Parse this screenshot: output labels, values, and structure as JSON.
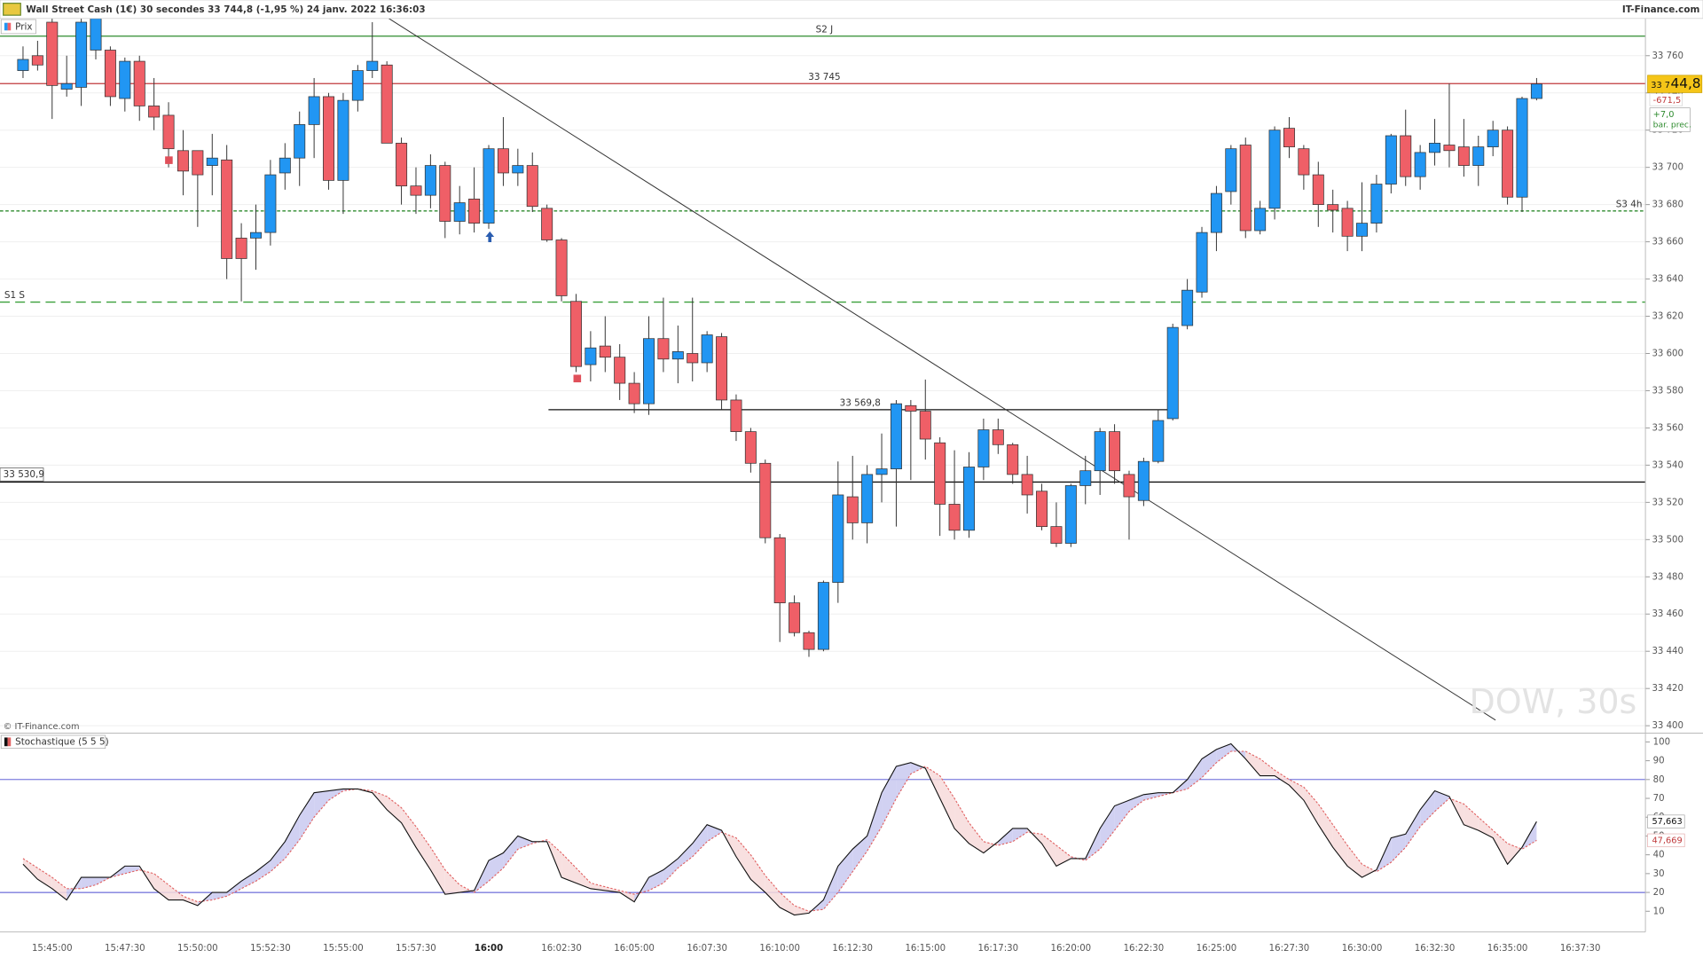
{
  "header": {
    "title": "Wall Street Cash (1€) 30 secondes 33 744,8 (-1,95 %) 24 janv. 2022 16:36:03",
    "source": "IT-Finance.com",
    "copyright": "© IT-Finance.com",
    "watermark": "DOW, 30s"
  },
  "chart_data": [
    {
      "type": "candlestick",
      "legend": "Prix",
      "up_color": "#2196f3",
      "down_color": "#ef5f67",
      "grid": true,
      "categories": [
        null,
        null,
        "15:45:00",
        null,
        null,
        null,
        null,
        "15:47:30",
        null,
        null,
        null,
        null,
        "15:50:00",
        null,
        null,
        null,
        null,
        "15:52:30",
        null,
        null,
        null,
        null,
        "15:55:00",
        null,
        null,
        null,
        null,
        "15:57:30",
        null,
        null,
        null,
        null,
        "16:00",
        null,
        null,
        null,
        null,
        "16:02:30",
        null,
        null,
        null,
        null,
        "16:05:00",
        null,
        null,
        null,
        null,
        "16:07:30",
        null,
        null,
        null,
        null,
        "16:10:00",
        null,
        null,
        null,
        null,
        "16:12:30",
        null,
        null,
        null,
        null,
        "16:15:00",
        null,
        null,
        null,
        null,
        "16:17:30",
        null,
        null,
        null,
        null,
        "16:20:00",
        null,
        null,
        null,
        null,
        "16:22:30",
        null,
        null,
        null,
        null,
        "16:25:00",
        null,
        null,
        null,
        null,
        "16:27:30",
        null,
        null,
        null,
        null,
        "16:30:00",
        null,
        null,
        null,
        null,
        "16:32:30",
        null,
        null,
        null,
        null,
        "16:35:00",
        null,
        null,
        null,
        null,
        "16:37:30"
      ],
      "open": [
        33752,
        33760,
        33778,
        33742,
        33743,
        33763,
        33763,
        33737,
        33757,
        33733,
        33728,
        33709,
        33709,
        33701,
        33704,
        33662,
        33662,
        33665,
        33697,
        33705,
        33723,
        33738,
        33693,
        33736,
        33752,
        33755,
        33713,
        33690,
        33685,
        33701,
        33671,
        33683,
        33670,
        33710,
        33697,
        33701,
        33678,
        33661,
        33628,
        33594,
        33604,
        33598,
        33584,
        33573,
        33608,
        33597,
        33600,
        33595,
        33609,
        33575,
        33558,
        33541,
        33501,
        33466,
        33450,
        33441,
        33477,
        33523,
        33509,
        33535,
        33538,
        33572,
        33569,
        33552,
        33519,
        33505,
        33539,
        33559,
        33551,
        33535,
        33526,
        33507,
        33498,
        33529,
        33537,
        33558,
        33535,
        33521,
        33542,
        33565,
        33615,
        33633,
        33665,
        33687,
        33712,
        33666,
        33678,
        33721,
        33710,
        33696,
        33680,
        33678,
        33663,
        33670,
        33691,
        33717,
        33695,
        33708,
        33712,
        33711,
        33701,
        33711,
        33720,
        33684,
        33737,
        null,
        null,
        null
      ],
      "high": [
        33765,
        33768,
        33780,
        33760,
        33780,
        33780,
        33765,
        33759,
        33760,
        33748,
        33735,
        33720,
        33709,
        33718,
        33712,
        33670,
        33680,
        33704,
        33713,
        33730,
        33748,
        33740,
        33740,
        33755,
        33778,
        33757,
        33716,
        33700,
        33707,
        33703,
        33690,
        33700,
        33712,
        33727,
        33710,
        33708,
        33680,
        33662,
        33632,
        33612,
        33620,
        33605,
        33590,
        33620,
        33630,
        33615,
        33630,
        33612,
        33611,
        33578,
        33560,
        33543,
        33503,
        33470,
        33451,
        33478,
        33542,
        33545,
        33540,
        33557,
        33575,
        33575,
        33586,
        33555,
        33548,
        33547,
        33565,
        33565,
        33552,
        33545,
        33530,
        33520,
        33530,
        33545,
        33560,
        33562,
        33537,
        33544,
        33570,
        33616,
        33640,
        33668,
        33690,
        33712,
        33716,
        33682,
        33722,
        33727,
        33712,
        33703,
        33688,
        33682,
        33692,
        33696,
        33718,
        33731,
        33712,
        33726,
        33745,
        33726,
        33717,
        33725,
        33722,
        33738,
        33748,
        null,
        null,
        null
      ],
      "low": [
        33748,
        33752,
        33726,
        33738,
        33733,
        33758,
        33733,
        33730,
        33725,
        33720,
        33700,
        33685,
        33668,
        33685,
        33640,
        33628,
        33645,
        33658,
        33688,
        33690,
        33705,
        33688,
        33675,
        33730,
        33748,
        33713,
        33680,
        33675,
        33678,
        33662,
        33664,
        33665,
        33667,
        33690,
        33690,
        33676,
        33660,
        33628,
        33590,
        33585,
        33590,
        33575,
        33568,
        33567,
        33590,
        33584,
        33585,
        33590,
        33570,
        33553,
        33536,
        33498,
        33445,
        33448,
        33437,
        33440,
        33466,
        33500,
        33498,
        33520,
        33507,
        33532,
        33543,
        33502,
        33500,
        33501,
        33532,
        33546,
        33530,
        33514,
        33505,
        33496,
        33496,
        33519,
        33524,
        33530,
        33500,
        33518,
        33541,
        33564,
        33613,
        33630,
        33655,
        33680,
        33662,
        33664,
        33672,
        33705,
        33688,
        33668,
        33665,
        33655,
        33655,
        33665,
        33686,
        33690,
        33688,
        33701,
        33700,
        33695,
        33690,
        33706,
        33680,
        33676,
        33736,
        null,
        null,
        null
      ],
      "close": [
        33758,
        33755,
        33744,
        33745,
        33778,
        33780,
        33738,
        33757,
        33733,
        33727,
        33710,
        33698,
        33696,
        33705,
        33651,
        33651,
        33665,
        33696,
        33705,
        33723,
        33738,
        33693,
        33736,
        33752,
        33757,
        33713,
        33690,
        33685,
        33701,
        33671,
        33681,
        33670,
        33710,
        33697,
        33701,
        33679,
        33661,
        33631,
        33593,
        33603,
        33598,
        33584,
        33573,
        33608,
        33597,
        33601,
        33595,
        33610,
        33575,
        33558,
        33541,
        33501,
        33466,
        33450,
        33441,
        33477,
        33524,
        33509,
        33535,
        33538,
        33573,
        33569,
        33554,
        33519,
        33505,
        33539,
        33559,
        33551,
        33535,
        33524,
        33507,
        33498,
        33529,
        33537,
        33558,
        33537,
        33523,
        33542,
        33564,
        33614,
        33634,
        33665,
        33686,
        33710,
        33666,
        33678,
        33720,
        33711,
        33696,
        33680,
        33677,
        33663,
        33670,
        33691,
        33717,
        33695,
        33708,
        33713,
        33709,
        33701,
        33711,
        33720,
        33684,
        33737,
        33744.8,
        null,
        null,
        null
      ],
      "ylim": [
        33396,
        33780
      ],
      "yticks": [
        {
          "value": 33400,
          "label": "33 400"
        },
        {
          "value": 33420,
          "label": "33 420"
        },
        {
          "value": 33440,
          "label": "33 440"
        },
        {
          "value": 33460,
          "label": "33 460"
        },
        {
          "value": 33480,
          "label": "33 480"
        },
        {
          "value": 33500,
          "label": "33 500"
        },
        {
          "value": 33520,
          "label": "33 520"
        },
        {
          "value": 33540,
          "label": "33 540"
        },
        {
          "value": 33560,
          "label": "33 560"
        },
        {
          "value": 33580,
          "label": "33 580"
        },
        {
          "value": 33600,
          "label": "33 600"
        },
        {
          "value": 33620,
          "label": "33 620"
        },
        {
          "value": 33640,
          "label": "33 640"
        },
        {
          "value": 33660,
          "label": "33 660"
        },
        {
          "value": 33680,
          "label": "33 680"
        },
        {
          "value": 33700,
          "label": "33 700"
        },
        {
          "value": 33720,
          "label": "33 720"
        },
        {
          "value": 33740,
          "label": "33 740"
        },
        {
          "value": 33760,
          "label": "33 760"
        }
      ],
      "levels": [
        {
          "value": 33770.5,
          "label": "S2 J",
          "color": "#2e8b2e",
          "style": "solid"
        },
        {
          "value": 33745,
          "label": "33 745",
          "color": "#c0393b",
          "style": "solid"
        },
        {
          "value": 33676.6,
          "label": "S3 4h",
          "color": "#2e8b2e",
          "style": "dotted"
        },
        {
          "value": 33627.6,
          "label": "S1 S",
          "color": "#3aa03a",
          "style": "dashed"
        },
        {
          "value": 33569.8,
          "label": "33 569,8",
          "color": "#111111",
          "style": "solid"
        },
        {
          "value": 33530.9,
          "label": "33 530,9",
          "color": "#111111",
          "style": "solid"
        }
      ],
      "last_price": {
        "value": 33744.8,
        "label_prefix": "33 7",
        "label_suffix": "44,8"
      },
      "change": {
        "value": -671.5,
        "label": "-671,5"
      },
      "bar_change": {
        "value": 7.0,
        "label": "+7,0",
        "caption": "bar. prec."
      }
    },
    {
      "type": "stochastic",
      "title": "Stochastique (5 5 5)",
      "k_color": "#111111",
      "d_color": "#e06060",
      "fill_up_color": "#c9c9f0",
      "fill_down_color": "#f7dada",
      "band_color": "#4a4ad0",
      "bands": [
        20,
        80
      ],
      "k": [
        35,
        27,
        22,
        16,
        28,
        28,
        28,
        34,
        34,
        22,
        16,
        16,
        13,
        20,
        20,
        26,
        31,
        37,
        47,
        61,
        73,
        74,
        75,
        75,
        73,
        64,
        57,
        44,
        32,
        19,
        20,
        21,
        37,
        41,
        50,
        47,
        47,
        28,
        25,
        22,
        21,
        20,
        15,
        28,
        32,
        38,
        46,
        56,
        53,
        39,
        27,
        20,
        12,
        8,
        9,
        16,
        34,
        43,
        50,
        73,
        87,
        89,
        86,
        70,
        54,
        46,
        41,
        47,
        54,
        54,
        46,
        34,
        38,
        38,
        54,
        66,
        69,
        72,
        73,
        73,
        80,
        91,
        96,
        99,
        91,
        82,
        82,
        77,
        69,
        56,
        44,
        34,
        28,
        32,
        49,
        51,
        64,
        74,
        71,
        56,
        53,
        49,
        35,
        44,
        57.663,
        null,
        null,
        null
      ],
      "d": [
        38,
        33,
        28,
        22,
        22,
        24,
        28,
        30,
        32,
        30,
        24,
        18,
        15,
        16,
        18,
        22,
        26,
        31,
        38,
        48,
        60,
        69,
        74,
        75,
        74,
        71,
        65,
        55,
        44,
        32,
        24,
        20,
        26,
        33,
        43,
        46,
        48,
        41,
        33,
        25,
        23,
        21,
        19,
        21,
        25,
        33,
        39,
        47,
        52,
        49,
        40,
        29,
        20,
        13,
        10,
        11,
        20,
        31,
        42,
        55,
        70,
        83,
        87,
        82,
        70,
        57,
        47,
        45,
        47,
        52,
        51,
        45,
        39,
        37,
        43,
        53,
        63,
        69,
        71,
        73,
        75,
        81,
        89,
        95,
        95,
        91,
        85,
        80,
        76,
        67,
        56,
        45,
        35,
        31,
        36,
        44,
        55,
        63,
        70,
        67,
        60,
        53,
        46,
        43,
        47.669,
        null,
        null,
        null
      ],
      "k_last_label": "57,663",
      "d_last_label": "47,669",
      "ylim": [
        -1,
        103.5
      ],
      "yticks": [
        10,
        20,
        30,
        40,
        50,
        60,
        70,
        80,
        90,
        100
      ]
    }
  ]
}
